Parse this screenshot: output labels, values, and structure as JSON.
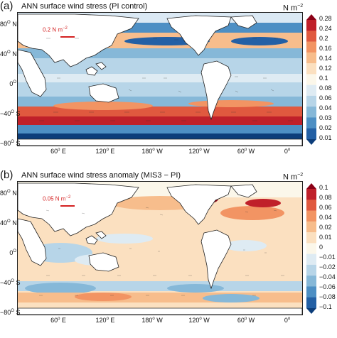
{
  "panels": [
    {
      "label": "(a)",
      "title": "ANN surface wind stress (PI control)",
      "units_base": "N m",
      "units_exp": "−2",
      "ref_arrow": {
        "value_text": "0.2 N m",
        "exp": "−2",
        "color": "#d42020"
      },
      "y_ticks": [
        {
          "value": "80",
          "deg": "O",
          "hemi": " N"
        },
        {
          "value": "40",
          "deg": "O",
          "hemi": " N"
        },
        {
          "value": "0",
          "deg": "O",
          "hemi": ""
        },
        {
          "value": "−40",
          "deg": "O",
          "hemi": " S"
        },
        {
          "value": "−80",
          "deg": "O",
          "hemi": " S"
        }
      ],
      "x_ticks": [
        {
          "value": "60",
          "deg": "o",
          "hemi": " E"
        },
        {
          "value": "120",
          "deg": "o",
          "hemi": " E"
        },
        {
          "value": "180",
          "deg": "o",
          "hemi": " W"
        },
        {
          "value": "120",
          "deg": "o",
          "hemi": " W"
        },
        {
          "value": "60",
          "deg": "o",
          "hemi": " W"
        },
        {
          "value": "0",
          "deg": "o",
          "hemi": ""
        }
      ],
      "colorbar": {
        "ticks": [
          "0.28",
          "0.24",
          "0.2",
          "0.16",
          "0.14",
          "0.12",
          "0.1",
          "0.08",
          "0.06",
          "0.04",
          "0.03",
          "0.02",
          "0.01"
        ],
        "colors": [
          "#8b0016",
          "#c0202a",
          "#e0593f",
          "#f29463",
          "#f7bd8c",
          "#fbe0c0",
          "#fbf7ea",
          "#deebf3",
          "#b7d5e8",
          "#86b8d8",
          "#4d8fc4",
          "#2360a5",
          "#0c3d7a"
        ]
      }
    },
    {
      "label": "(b)",
      "title": "ANN surface wind stress anomaly (MIS3 − PI)",
      "units_base": "N m",
      "units_exp": "−2",
      "ref_arrow": {
        "value_text": "0.05 N m",
        "exp": "−2",
        "color": "#d42020"
      },
      "y_ticks": [
        {
          "value": "80",
          "deg": "O",
          "hemi": " N"
        },
        {
          "value": "40",
          "deg": "O",
          "hemi": " N"
        },
        {
          "value": "0",
          "deg": "O",
          "hemi": ""
        },
        {
          "value": "−40",
          "deg": "O",
          "hemi": " S"
        },
        {
          "value": "−80",
          "deg": "O",
          "hemi": " S"
        }
      ],
      "x_ticks": [
        {
          "value": "60",
          "deg": "o",
          "hemi": " E"
        },
        {
          "value": "120",
          "deg": "o",
          "hemi": " E"
        },
        {
          "value": "180",
          "deg": "o",
          "hemi": " W"
        },
        {
          "value": "120",
          "deg": "o",
          "hemi": " W"
        },
        {
          "value": "60",
          "deg": "o",
          "hemi": " W"
        },
        {
          "value": "0",
          "deg": "o",
          "hemi": ""
        }
      ],
      "colorbar": {
        "ticks": [
          "0.1",
          "0.08",
          "0.06",
          "0.04",
          "0.02",
          "0.01",
          "0",
          "−0.01",
          "−0.02",
          "−0.04",
          "−0.06",
          "−0.08",
          "−0.1"
        ],
        "colors": [
          "#8b0016",
          "#c0202a",
          "#e0593f",
          "#f29463",
          "#f7bd8c",
          "#fbe0c0",
          "#fbf7ea",
          "#deebf3",
          "#b7d5e8",
          "#86b8d8",
          "#4d8fc4",
          "#2360a5",
          "#0c3d7a"
        ]
      }
    }
  ]
}
